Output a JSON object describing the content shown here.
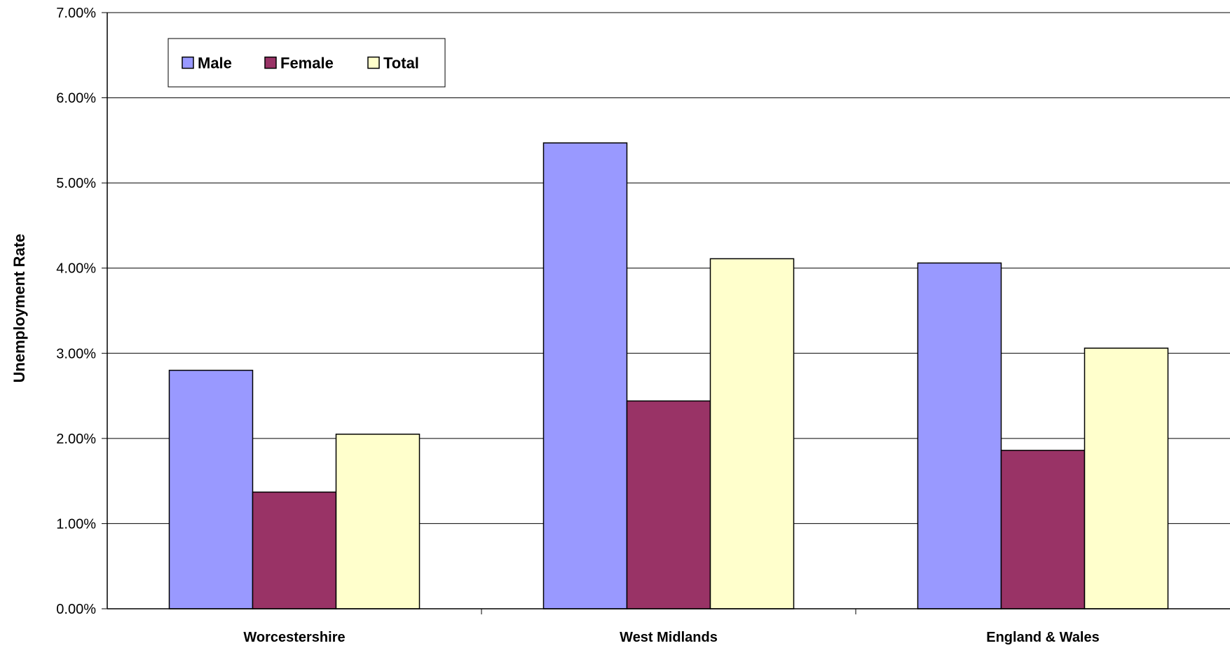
{
  "chart_data": {
    "type": "bar",
    "title": "",
    "xlabel": "",
    "ylabel": "Unemployment Rate",
    "ylim": [
      0,
      7
    ],
    "yticks": [
      "0.00%",
      "1.00%",
      "2.00%",
      "3.00%",
      "4.00%",
      "5.00%",
      "6.00%",
      "7.00%"
    ],
    "categories": [
      "Worcestershire",
      "West Midlands",
      "England & Wales"
    ],
    "series": [
      {
        "name": "Male",
        "color": "#9999ff",
        "values": [
          2.8,
          5.47,
          4.06
        ]
      },
      {
        "name": "Female",
        "color": "#993366",
        "values": [
          1.37,
          2.44,
          1.86
        ]
      },
      {
        "name": "Total",
        "color": "#ffffcc",
        "values": [
          2.05,
          4.11,
          3.06
        ]
      }
    ],
    "grid": true,
    "legend_position": "top-left"
  }
}
